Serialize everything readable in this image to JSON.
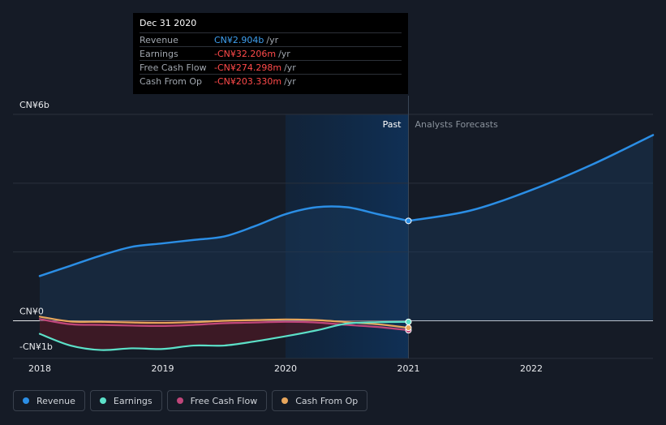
{
  "tooltip": {
    "date": "Dec 31 2020",
    "rows": [
      {
        "label": "Revenue",
        "value": "CN¥2.904b",
        "unit": "/yr"
      },
      {
        "label": "Earnings",
        "value": "-CN¥32.206m",
        "unit": "/yr"
      },
      {
        "label": "Free Cash Flow",
        "value": "-CN¥274.298m",
        "unit": "/yr"
      },
      {
        "label": "Cash From Op",
        "value": "-CN¥203.330m",
        "unit": "/yr"
      }
    ]
  },
  "region_labels": {
    "past": "Past",
    "forecast": "Analysts Forecasts"
  },
  "legend": [
    {
      "label": "Revenue",
      "color": "#2b8ee5"
    },
    {
      "label": "Earnings",
      "color": "#5ce0c8"
    },
    {
      "label": "Free Cash Flow",
      "color": "#c0467a"
    },
    {
      "label": "Cash From Op",
      "color": "#e8a65c"
    }
  ],
  "chart_data": {
    "type": "line",
    "title": "",
    "xlabel": "",
    "ylabel": "",
    "x_ticks": [
      "2018",
      "2019",
      "2020",
      "2021",
      "2022"
    ],
    "y_tick_labels": [
      {
        "value": 6,
        "label": "CN¥6b"
      },
      {
        "value": 0,
        "label": "CN¥0"
      },
      {
        "value": -1,
        "label": "-CN¥1b"
      }
    ],
    "ylim": [
      -1,
      6
    ],
    "xlim": [
      2018,
      2023
    ],
    "divider_x": 2021,
    "shaded_past_start": 2020,
    "grid": true,
    "series": [
      {
        "name": "Revenue",
        "color": "#2b8ee5",
        "points": [
          [
            2018.0,
            1.3
          ],
          [
            2018.25,
            1.6
          ],
          [
            2018.5,
            1.9
          ],
          [
            2018.75,
            2.15
          ],
          [
            2019.0,
            2.25
          ],
          [
            2019.25,
            2.35
          ],
          [
            2019.5,
            2.45
          ],
          [
            2019.75,
            2.75
          ],
          [
            2020.0,
            3.1
          ],
          [
            2020.25,
            3.3
          ],
          [
            2020.5,
            3.3
          ],
          [
            2020.75,
            3.1
          ],
          [
            2021.0,
            2.904
          ]
        ],
        "forecast": [
          [
            2021.0,
            2.904
          ],
          [
            2021.5,
            3.2
          ],
          [
            2022.0,
            3.8
          ],
          [
            2022.5,
            4.55
          ],
          [
            2022.99,
            5.4
          ]
        ]
      },
      {
        "name": "Earnings",
        "color": "#5ce0c8",
        "points": [
          [
            2018.0,
            -0.38
          ],
          [
            2018.25,
            -0.72
          ],
          [
            2018.5,
            -0.85
          ],
          [
            2018.75,
            -0.8
          ],
          [
            2019.0,
            -0.82
          ],
          [
            2019.25,
            -0.72
          ],
          [
            2019.5,
            -0.72
          ],
          [
            2019.75,
            -0.6
          ],
          [
            2020.0,
            -0.45
          ],
          [
            2020.25,
            -0.28
          ],
          [
            2020.5,
            -0.08
          ],
          [
            2020.75,
            -0.04
          ],
          [
            2021.0,
            -0.032
          ]
        ]
      },
      {
        "name": "Free Cash Flow",
        "color": "#c0467a",
        "points": [
          [
            2018.0,
            0.05
          ],
          [
            2018.25,
            -0.1
          ],
          [
            2018.5,
            -0.12
          ],
          [
            2018.75,
            -0.14
          ],
          [
            2019.0,
            -0.15
          ],
          [
            2019.25,
            -0.12
          ],
          [
            2019.5,
            -0.07
          ],
          [
            2019.75,
            -0.05
          ],
          [
            2020.0,
            -0.03
          ],
          [
            2020.25,
            -0.05
          ],
          [
            2020.5,
            -0.12
          ],
          [
            2020.75,
            -0.18
          ],
          [
            2021.0,
            -0.274
          ]
        ]
      },
      {
        "name": "Cash From Op",
        "color": "#e8a65c",
        "points": [
          [
            2018.0,
            0.12
          ],
          [
            2018.25,
            -0.02
          ],
          [
            2018.5,
            -0.03
          ],
          [
            2018.75,
            -0.05
          ],
          [
            2019.0,
            -0.06
          ],
          [
            2019.25,
            -0.04
          ],
          [
            2019.5,
            0.0
          ],
          [
            2019.75,
            0.02
          ],
          [
            2020.0,
            0.04
          ],
          [
            2020.25,
            0.02
          ],
          [
            2020.5,
            -0.04
          ],
          [
            2020.75,
            -0.1
          ],
          [
            2021.0,
            -0.203
          ]
        ]
      }
    ]
  }
}
